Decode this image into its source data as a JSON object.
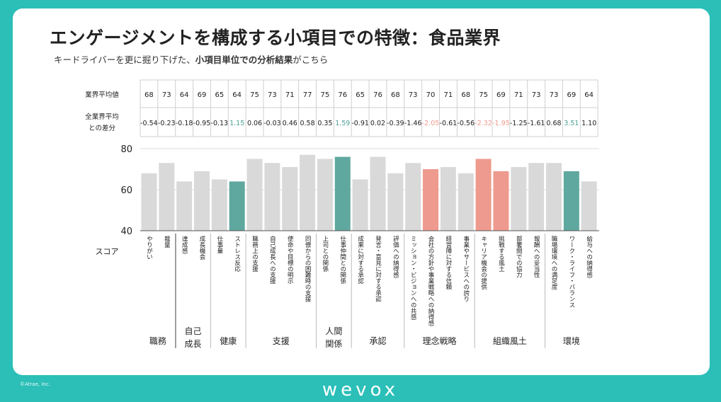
{
  "title": "エンゲージメントを構成する小項目での特徴：食品業界",
  "subtitle_pre": "キードライバーを更に掘り下げた、",
  "subtitle_bold": "小項目単位での分析結果",
  "subtitle_post": "がこちら",
  "copyright": "©Atrae, Inc.",
  "logo": "wevox",
  "colors": {
    "neutral": "#d9d9d9",
    "positive": "#5fa8a0",
    "negative": "#ef9a8e",
    "teal_text": "#4e9f95",
    "red_text": "#ef9a8e"
  },
  "chart_data": {
    "type": "bar",
    "row_labels": {
      "avg": "業界平均値",
      "diff_line1": "全業界平均",
      "diff_line2": "との差分"
    },
    "score_label": "スコア",
    "ylim": [
      40,
      80
    ],
    "yticks": [
      40,
      60,
      80
    ],
    "categories": [
      "やりがい",
      "裁量",
      "達成感",
      "成長機会",
      "仕事量",
      "ストレス反応",
      "職務上の支援",
      "自己成長への支援",
      "使命や目標の明示",
      "同僚からの困難時の支援",
      "上司との関係",
      "仕事仲間との関係",
      "成果に対する承認",
      "発言・意見に対する承認",
      "評価への納得感",
      "ミッション・ビジョンへの共感",
      "会社の方針や事業戦略への納得感",
      "経営陣に対する信頼",
      "事業やサービスへの誇り",
      "キャリア機会の提供",
      "挑戦する風土",
      "部署間での協力",
      "報酬への妥当性",
      "職場環境への満足度",
      "ワーク・ライフ・バランス",
      "給与への納得感"
    ],
    "values": [
      68,
      73,
      64,
      69,
      65,
      64,
      75,
      73,
      71,
      77,
      75,
      76,
      65,
      76,
      68,
      73,
      70,
      71,
      68,
      75,
      69,
      71,
      73,
      73,
      69,
      64
    ],
    "avg_labels": [
      "68",
      "73",
      "64",
      "69",
      "65",
      "64",
      "75",
      "73",
      "71",
      "77",
      "75",
      "76",
      "65",
      "76",
      "68",
      "73",
      "70",
      "71",
      "68",
      "75",
      "69",
      "71",
      "73",
      "73",
      "69",
      "64"
    ],
    "diffs": [
      "-0.54",
      "-0.23",
      "-0.18",
      "-0.95",
      "-0.13",
      "1.15",
      "0.06",
      "-0.03",
      "0.46",
      "0.58",
      "0.35",
      "1.59",
      "-0.91",
      "0.02",
      "-0.39",
      "-1.46",
      "-2.05",
      "-0.61",
      "-0.56",
      "-2.32",
      "-1.95",
      "-1.25",
      "-1.61",
      "0.68",
      "3.51",
      "1.10"
    ],
    "highlight": [
      "n",
      "n",
      "n",
      "n",
      "n",
      "pos",
      "n",
      "n",
      "n",
      "n",
      "n",
      "pos",
      "n",
      "n",
      "n",
      "n",
      "neg",
      "n",
      "n",
      "neg",
      "neg",
      "n",
      "n",
      "n",
      "pos",
      "n"
    ],
    "groups": [
      {
        "lines": [
          "職務"
        ],
        "start": 0,
        "end": 1
      },
      {
        "lines": [
          "自己",
          "成長"
        ],
        "start": 2,
        "end": 3
      },
      {
        "lines": [
          "健康"
        ],
        "start": 4,
        "end": 5
      },
      {
        "lines": [
          "支援"
        ],
        "start": 6,
        "end": 9
      },
      {
        "lines": [
          "人間",
          "関係"
        ],
        "start": 10,
        "end": 11
      },
      {
        "lines": [
          "承認"
        ],
        "start": 12,
        "end": 14
      },
      {
        "lines": [
          "理念戦略"
        ],
        "start": 15,
        "end": 18
      },
      {
        "lines": [
          "組織風土"
        ],
        "start": 19,
        "end": 22
      },
      {
        "lines": [
          "環境"
        ],
        "start": 23,
        "end": 25
      }
    ]
  }
}
